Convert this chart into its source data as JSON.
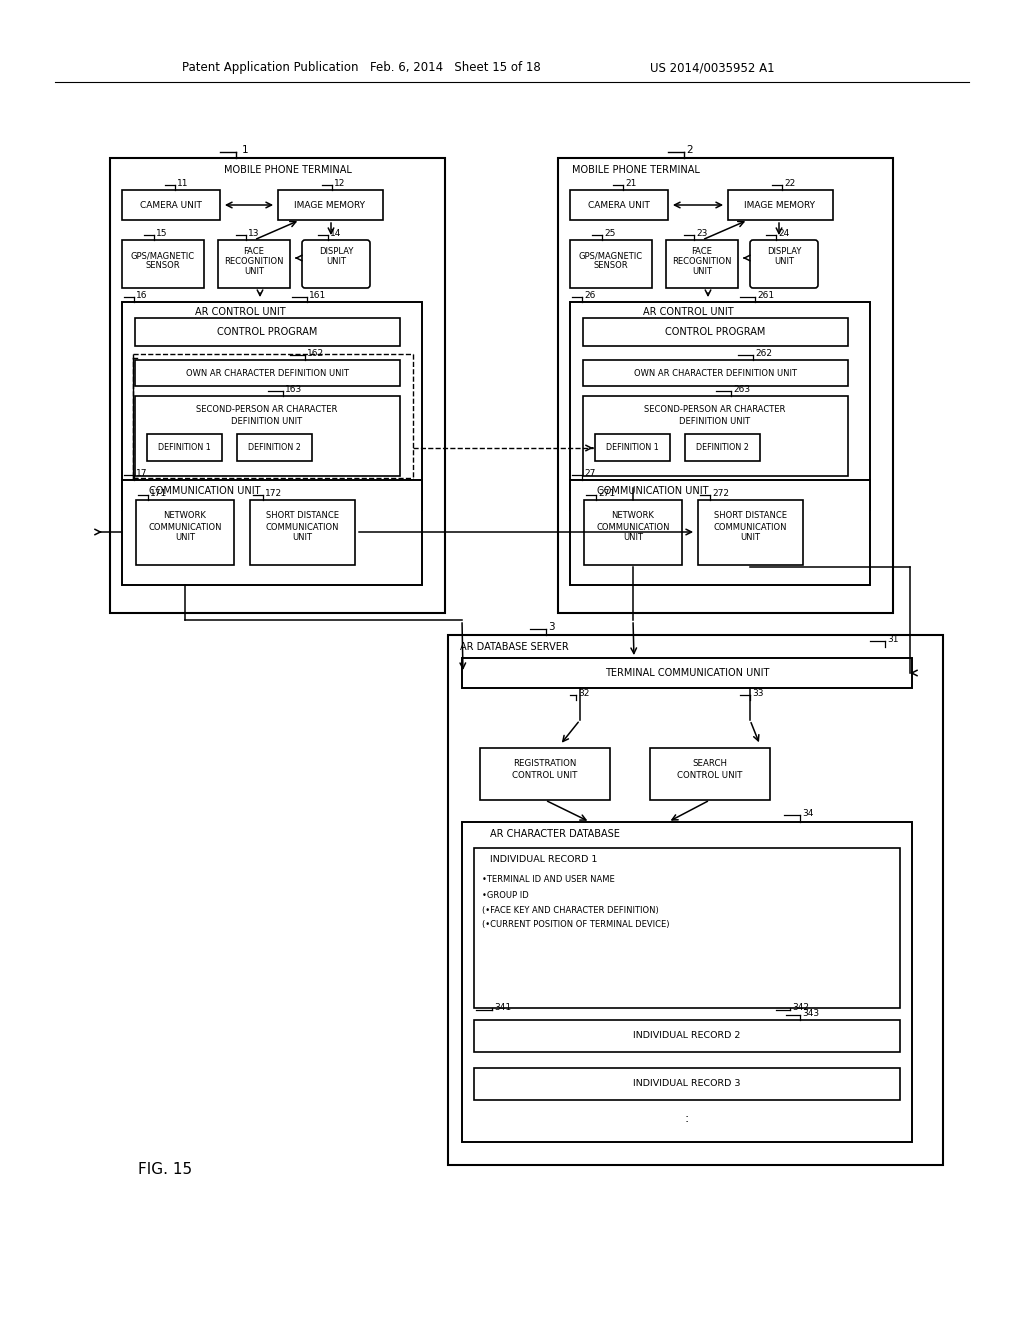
{
  "bg_color": "#ffffff",
  "header_left": "Patent Application Publication",
  "header_mid": "Feb. 6, 2014   Sheet 15 of 18",
  "header_right": "US 2014/0035952 A1",
  "fig_label": "FIG. 15"
}
